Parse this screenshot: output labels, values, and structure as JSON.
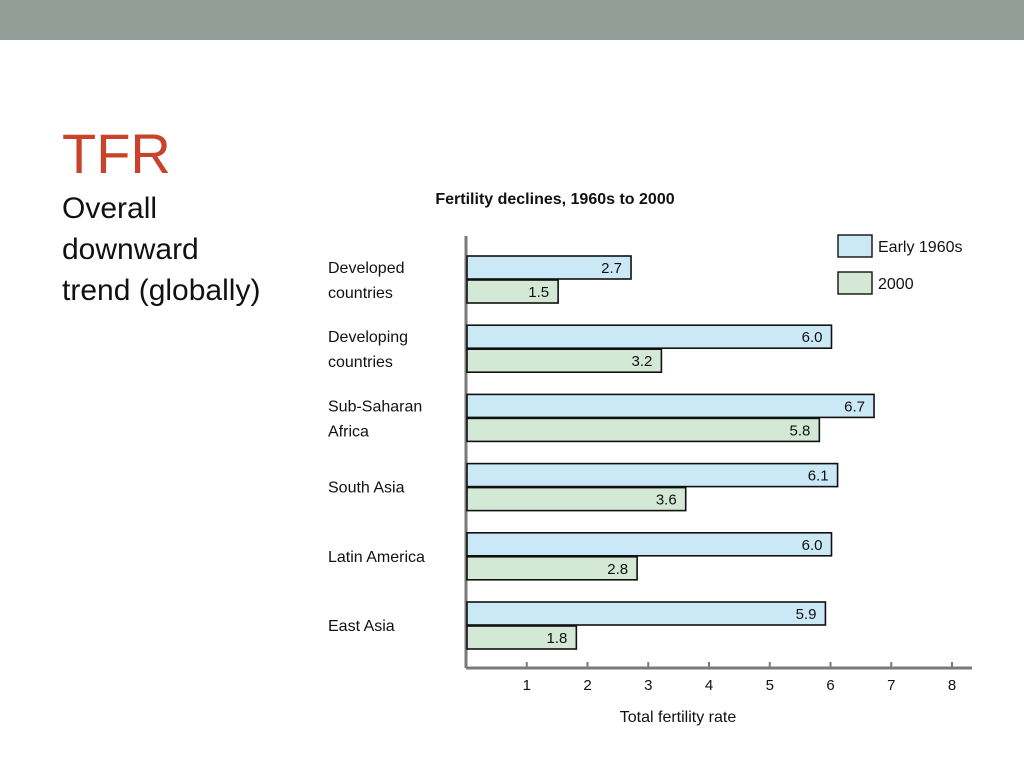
{
  "colors": {
    "top_band": "#949e98",
    "title": "#c8432a",
    "series_1960s": "#cbe8f6",
    "series_2000": "#d3e9d6",
    "axis": "#7a7a7a",
    "bar_stroke": "#111111"
  },
  "slide": {
    "title": "TFR",
    "body": "Overall\ndownward\ntrend (globally)"
  },
  "chart_data": {
    "type": "bar",
    "orientation": "horizontal",
    "title": "Fertility declines, 1960s to 2000",
    "xlabel": "Total fertility rate",
    "ylabel": "",
    "xlim": [
      0,
      8
    ],
    "xticks": [
      1,
      2,
      3,
      4,
      5,
      6,
      7,
      8
    ],
    "grid": false,
    "legend_position": "top-right",
    "categories": [
      [
        "Developed",
        "countries"
      ],
      [
        "Developing",
        "countries"
      ],
      [
        "Sub-Saharan",
        "Africa"
      ],
      [
        "South Asia"
      ],
      [
        "Latin America"
      ],
      [
        "East Asia"
      ]
    ],
    "series": [
      {
        "name": "Early 1960s",
        "values": [
          2.7,
          6.0,
          6.7,
          6.1,
          6.0,
          5.9
        ],
        "labels": [
          "2.7",
          "6.0",
          "6.7",
          "6.1",
          "6.0",
          "5.9"
        ]
      },
      {
        "name": "2000",
        "values": [
          1.5,
          3.2,
          5.8,
          3.6,
          2.8,
          1.8
        ],
        "labels": [
          "1.5",
          "3.2",
          "5.8",
          "3.6",
          "2.8",
          "1.8"
        ]
      }
    ]
  }
}
